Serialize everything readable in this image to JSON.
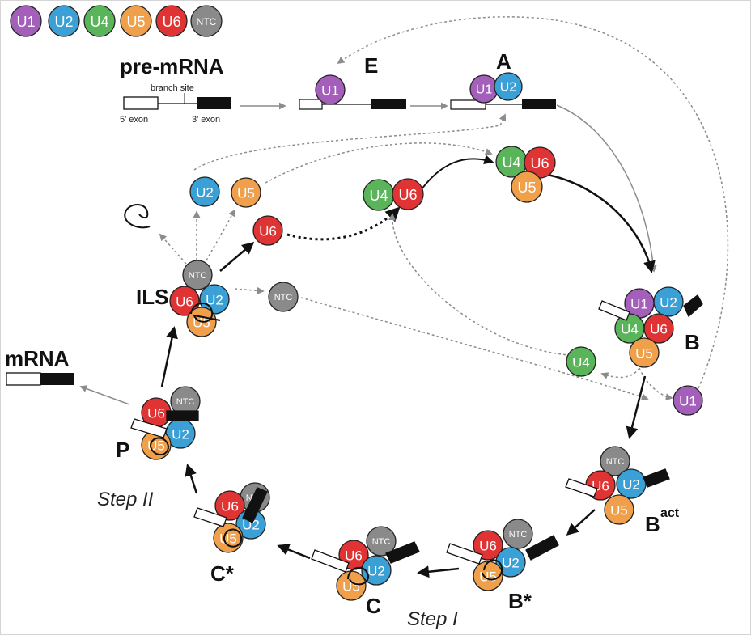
{
  "legend": [
    "U1",
    "U2",
    "U4",
    "U5",
    "U6",
    "NTC"
  ],
  "substrate": {
    "title": "pre-mRNA",
    "branch_site": "branch site",
    "exon5": "5' exon",
    "exon3": "3' exon"
  },
  "complexes": {
    "E": "E",
    "A": "A",
    "B": "B",
    "Bact": "B",
    "Bact_sup": "act",
    "Bstar": "B*",
    "C": "C",
    "Cstar": "C*",
    "P": "P",
    "ILS": "ILS"
  },
  "product": "mRNA",
  "steps": {
    "step1": "Step I",
    "step2": "Step II"
  },
  "particle_labels": {
    "U1": "U1",
    "U2": "U2",
    "U4": "U4",
    "U5": "U5",
    "U6": "U6",
    "NTC": "NTC"
  },
  "colors": {
    "U1": "#a45fba",
    "U2": "#3aa0d6",
    "U4": "#5ab55a",
    "U5": "#f0a04a",
    "U6": "#e03434",
    "NTC": "#8a8a8a"
  }
}
